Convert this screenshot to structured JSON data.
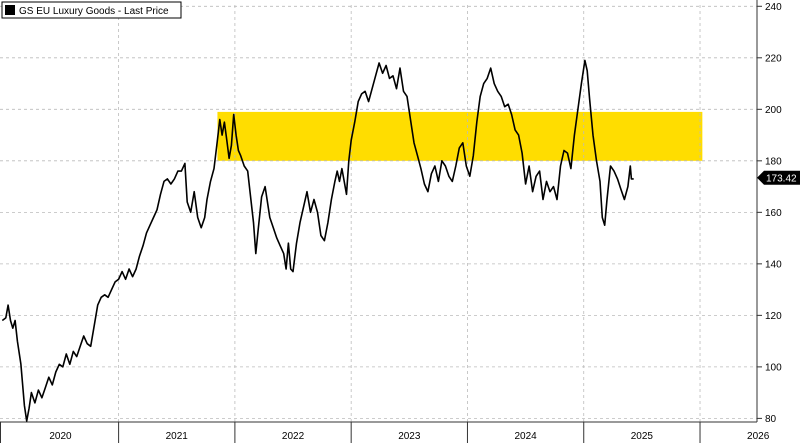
{
  "chart_data": {
    "type": "line",
    "legend": {
      "label": "GS EU Luxury Goods - Last Price",
      "placement": "top-left",
      "swatch_color": "#000000"
    },
    "series": [
      {
        "name": "GS EU Luxury Goods - Last Price",
        "color": "#000000",
        "points": [
          [
            2020.0,
            118
          ],
          [
            2020.03,
            119
          ],
          [
            2020.05,
            124
          ],
          [
            2020.07,
            118
          ],
          [
            2020.09,
            115
          ],
          [
            2020.11,
            118
          ],
          [
            2020.13,
            110
          ],
          [
            2020.16,
            101
          ],
          [
            2020.19,
            85
          ],
          [
            2020.21,
            79
          ],
          [
            2020.23,
            84
          ],
          [
            2020.25,
            90
          ],
          [
            2020.28,
            86
          ],
          [
            2020.31,
            91
          ],
          [
            2020.34,
            88
          ],
          [
            2020.37,
            92
          ],
          [
            2020.4,
            96
          ],
          [
            2020.43,
            93
          ],
          [
            2020.46,
            98
          ],
          [
            2020.49,
            101
          ],
          [
            2020.52,
            100
          ],
          [
            2020.55,
            105
          ],
          [
            2020.58,
            101
          ],
          [
            2020.61,
            106
          ],
          [
            2020.64,
            104
          ],
          [
            2020.67,
            108
          ],
          [
            2020.7,
            112
          ],
          [
            2020.73,
            109
          ],
          [
            2020.76,
            108
          ],
          [
            2020.79,
            116
          ],
          [
            2020.82,
            124
          ],
          [
            2020.85,
            127
          ],
          [
            2020.88,
            128
          ],
          [
            2020.91,
            127
          ],
          [
            2020.94,
            130
          ],
          [
            2020.97,
            133
          ],
          [
            2021.0,
            134
          ],
          [
            2021.03,
            137
          ],
          [
            2021.06,
            134
          ],
          [
            2021.09,
            138
          ],
          [
            2021.12,
            135
          ],
          [
            2021.15,
            138
          ],
          [
            2021.18,
            143
          ],
          [
            2021.21,
            147
          ],
          [
            2021.24,
            152
          ],
          [
            2021.27,
            155
          ],
          [
            2021.3,
            158
          ],
          [
            2021.33,
            161
          ],
          [
            2021.36,
            167
          ],
          [
            2021.39,
            172
          ],
          [
            2021.42,
            173
          ],
          [
            2021.45,
            171
          ],
          [
            2021.48,
            173
          ],
          [
            2021.51,
            176
          ],
          [
            2021.54,
            176
          ],
          [
            2021.57,
            179
          ],
          [
            2021.59,
            164
          ],
          [
            2021.62,
            160
          ],
          [
            2021.65,
            168
          ],
          [
            2021.68,
            158
          ],
          [
            2021.71,
            154
          ],
          [
            2021.74,
            158
          ],
          [
            2021.76,
            165
          ],
          [
            2021.79,
            172
          ],
          [
            2021.82,
            177
          ],
          [
            2021.85,
            188
          ],
          [
            2021.87,
            196
          ],
          [
            2021.89,
            190
          ],
          [
            2021.91,
            195
          ],
          [
            2021.93,
            188
          ],
          [
            2021.95,
            181
          ],
          [
            2021.97,
            186
          ],
          [
            2021.99,
            198
          ],
          [
            2022.01,
            190
          ],
          [
            2022.03,
            184
          ],
          [
            2022.05,
            182
          ],
          [
            2022.08,
            178
          ],
          [
            2022.11,
            176
          ],
          [
            2022.13,
            168
          ],
          [
            2022.16,
            156
          ],
          [
            2022.18,
            144
          ],
          [
            2022.2,
            153
          ],
          [
            2022.23,
            166
          ],
          [
            2022.26,
            170
          ],
          [
            2022.3,
            158
          ],
          [
            2022.33,
            154
          ],
          [
            2022.36,
            150
          ],
          [
            2022.39,
            147
          ],
          [
            2022.42,
            144
          ],
          [
            2022.44,
            138
          ],
          [
            2022.46,
            148
          ],
          [
            2022.48,
            138
          ],
          [
            2022.5,
            137
          ],
          [
            2022.53,
            148
          ],
          [
            2022.56,
            156
          ],
          [
            2022.59,
            162
          ],
          [
            2022.62,
            168
          ],
          [
            2022.65,
            160
          ],
          [
            2022.68,
            165
          ],
          [
            2022.71,
            160
          ],
          [
            2022.74,
            151
          ],
          [
            2022.77,
            149
          ],
          [
            2022.8,
            156
          ],
          [
            2022.83,
            165
          ],
          [
            2022.86,
            172
          ],
          [
            2022.88,
            176
          ],
          [
            2022.9,
            172
          ],
          [
            2022.92,
            177
          ],
          [
            2022.94,
            172
          ],
          [
            2022.96,
            167
          ],
          [
            2022.98,
            180
          ],
          [
            2023.0,
            188
          ],
          [
            2023.03,
            195
          ],
          [
            2023.06,
            203
          ],
          [
            2023.09,
            206
          ],
          [
            2023.12,
            207
          ],
          [
            2023.15,
            203
          ],
          [
            2023.18,
            208
          ],
          [
            2023.21,
            213
          ],
          [
            2023.24,
            218
          ],
          [
            2023.27,
            214
          ],
          [
            2023.3,
            217
          ],
          [
            2023.33,
            212
          ],
          [
            2023.36,
            213
          ],
          [
            2023.39,
            208
          ],
          [
            2023.42,
            216
          ],
          [
            2023.45,
            207
          ],
          [
            2023.48,
            205
          ],
          [
            2023.51,
            196
          ],
          [
            2023.54,
            187
          ],
          [
            2023.57,
            182
          ],
          [
            2023.6,
            177
          ],
          [
            2023.63,
            171
          ],
          [
            2023.66,
            168
          ],
          [
            2023.69,
            175
          ],
          [
            2023.72,
            178
          ],
          [
            2023.75,
            172
          ],
          [
            2023.78,
            180
          ],
          [
            2023.81,
            178
          ],
          [
            2023.84,
            174
          ],
          [
            2023.87,
            172
          ],
          [
            2023.9,
            178
          ],
          [
            2023.93,
            185
          ],
          [
            2023.96,
            187
          ],
          [
            2023.99,
            178
          ],
          [
            2024.02,
            174
          ],
          [
            2024.05,
            182
          ],
          [
            2024.08,
            195
          ],
          [
            2024.11,
            205
          ],
          [
            2024.14,
            210
          ],
          [
            2024.17,
            212
          ],
          [
            2024.2,
            216
          ],
          [
            2024.23,
            210
          ],
          [
            2024.26,
            207
          ],
          [
            2024.29,
            205
          ],
          [
            2024.32,
            201
          ],
          [
            2024.35,
            202
          ],
          [
            2024.38,
            198
          ],
          [
            2024.41,
            192
          ],
          [
            2024.44,
            190
          ],
          [
            2024.47,
            183
          ],
          [
            2024.5,
            171
          ],
          [
            2024.53,
            178
          ],
          [
            2024.56,
            168
          ],
          [
            2024.59,
            174
          ],
          [
            2024.62,
            176
          ],
          [
            2024.65,
            165
          ],
          [
            2024.68,
            172
          ],
          [
            2024.71,
            168
          ],
          [
            2024.74,
            170
          ],
          [
            2024.77,
            165
          ],
          [
            2024.8,
            178
          ],
          [
            2024.83,
            184
          ],
          [
            2024.86,
            183
          ],
          [
            2024.89,
            177
          ],
          [
            2024.92,
            190
          ],
          [
            2024.95,
            200
          ],
          [
            2024.98,
            210
          ],
          [
            2025.01,
            219
          ],
          [
            2025.03,
            215
          ],
          [
            2025.05,
            204
          ],
          [
            2025.08,
            190
          ],
          [
            2025.11,
            180
          ],
          [
            2025.14,
            172
          ],
          [
            2025.16,
            158
          ],
          [
            2025.18,
            155
          ],
          [
            2025.2,
            165
          ],
          [
            2025.23,
            178
          ],
          [
            2025.26,
            176
          ],
          [
            2025.29,
            173
          ],
          [
            2025.32,
            169
          ],
          [
            2025.35,
            165
          ],
          [
            2025.38,
            170
          ],
          [
            2025.4,
            178
          ],
          [
            2025.41,
            173
          ],
          [
            2025.43,
            173
          ]
        ]
      }
    ],
    "x_range": [
      2019.98,
      2026.49
    ],
    "y_range": [
      78.6,
      240.5
    ],
    "x_tick_labels": [
      {
        "label": "2020",
        "center": 2020.5,
        "end": 2021.0
      },
      {
        "label": "2021",
        "center": 2021.5,
        "end": 2022.0
      },
      {
        "label": "2022",
        "center": 2022.5,
        "end": 2023.0
      },
      {
        "label": "2023",
        "center": 2023.5,
        "end": 2024.0
      },
      {
        "label": "2024",
        "center": 2024.5,
        "end": 2025.0
      },
      {
        "label": "2025",
        "center": 2025.5,
        "end": 2026.0
      },
      {
        "label": "2026",
        "center": 2026.5,
        "end": null
      }
    ],
    "y_ticks": [
      80,
      100,
      120,
      140,
      160,
      180,
      200,
      220,
      240
    ],
    "y_tick_labels": [
      "80",
      "100",
      "120",
      "140",
      "160",
      "180",
      "200",
      "220",
      "240"
    ],
    "grid": "dashed vertical and horizontal",
    "highlight_band": {
      "y_from": 180,
      "y_to": 199,
      "x_from": 2021.85,
      "x_to": 2026.02,
      "color": "#ffdd00"
    },
    "last_value": {
      "value": 173.42,
      "label": "173.42"
    },
    "colors": {
      "line": "#000000",
      "band": "#ffdd00",
      "grid": "#bbbbbb",
      "axis": "#333333",
      "background": "#ffffff"
    }
  }
}
